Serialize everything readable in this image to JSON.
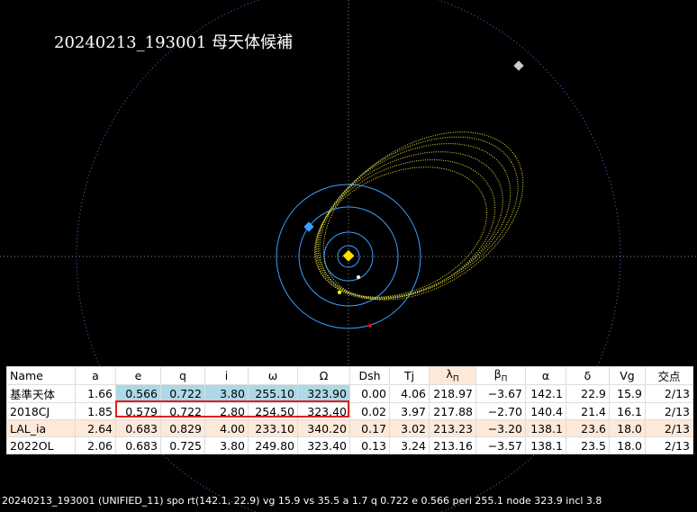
{
  "title": "20240213_193001 母天体候補",
  "table": {
    "headers": [
      "Name",
      "a",
      "e",
      "q",
      "i",
      "ω",
      "Ω",
      "Dsh",
      "Tj",
      {
        "base": "λ",
        "sub": "Π"
      },
      {
        "base": "β",
        "sub": "Π"
      },
      "α",
      "δ",
      "Vg",
      "交点"
    ],
    "rows": [
      [
        "基準天体",
        "1.66",
        "0.566",
        "0.722",
        "3.80",
        "255.10",
        "323.90",
        "0.00",
        "4.06",
        "218.97",
        "−3.67",
        "142.1",
        "22.9",
        "15.9",
        "2/13"
      ],
      [
        "2018CJ",
        "1.85",
        "0.579",
        "0.722",
        "2.80",
        "254.50",
        "323.40",
        "0.02",
        "3.97",
        "217.88",
        "−2.70",
        "140.4",
        "21.4",
        "16.1",
        "2/13"
      ],
      [
        "LAL_ia",
        "2.64",
        "0.683",
        "0.829",
        "4.00",
        "233.10",
        "340.20",
        "0.17",
        "3.02",
        "213.23",
        "−3.20",
        "138.1",
        "23.6",
        "18.0",
        "2/13"
      ],
      [
        "2022OL",
        "2.06",
        "0.683",
        "0.725",
        "3.80",
        "249.80",
        "323.40",
        "0.13",
        "3.24",
        "213.16",
        "−3.57",
        "138.1",
        "23.5",
        "18.0",
        "2/13"
      ]
    ]
  },
  "status": "20240213_193001 (UNIFIED_11) spo rt(142.1, 22.9) vg 15.9 vs 35.5 a 1.7 q 0.722 e 0.566 peri 255.1 node 323.9 incl 3.8"
}
